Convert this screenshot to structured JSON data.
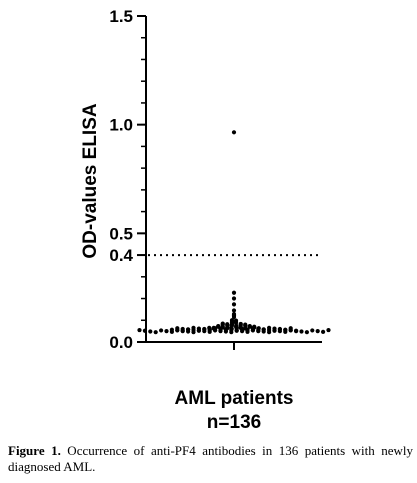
{
  "chart_data": {
    "type": "scatter",
    "ylabel": "OD-values ELISA",
    "categories": [
      "AML patients",
      "n=136"
    ],
    "ylim": [
      0,
      1.5
    ],
    "yticks": [
      0.0,
      0.4,
      0.5,
      1.0,
      1.5
    ],
    "ytick_labels": [
      "0.0",
      "0.4",
      "0.5",
      "1.0",
      "1.5"
    ],
    "reference_line": {
      "value": 0.4,
      "style": "dotted"
    },
    "outlier": 0.96,
    "n": 136,
    "values": [
      0.05,
      0.05,
      0.05,
      0.05,
      0.05,
      0.05,
      0.05,
      0.05,
      0.05,
      0.05,
      0.05,
      0.05,
      0.05,
      0.05,
      0.05,
      0.05,
      0.05,
      0.05,
      0.05,
      0.05,
      0.05,
      0.05,
      0.05,
      0.05,
      0.05,
      0.05,
      0.05,
      0.05,
      0.05,
      0.05,
      0.05,
      0.05,
      0.05,
      0.05,
      0.05,
      0.05,
      0.055,
      0.055,
      0.055,
      0.055,
      0.055,
      0.055,
      0.055,
      0.055,
      0.055,
      0.055,
      0.055,
      0.055,
      0.055,
      0.055,
      0.055,
      0.055,
      0.055,
      0.055,
      0.055,
      0.055,
      0.055,
      0.055,
      0.055,
      0.055,
      0.06,
      0.06,
      0.06,
      0.06,
      0.06,
      0.06,
      0.06,
      0.06,
      0.06,
      0.06,
      0.06,
      0.06,
      0.06,
      0.06,
      0.06,
      0.06,
      0.06,
      0.06,
      0.06,
      0.06,
      0.06,
      0.06,
      0.065,
      0.065,
      0.065,
      0.065,
      0.065,
      0.065,
      0.065,
      0.065,
      0.065,
      0.065,
      0.065,
      0.065,
      0.07,
      0.07,
      0.07,
      0.07,
      0.07,
      0.07,
      0.07,
      0.07,
      0.07,
      0.07,
      0.075,
      0.075,
      0.075,
      0.075,
      0.075,
      0.075,
      0.075,
      0.075,
      0.08,
      0.08,
      0.08,
      0.08,
      0.08,
      0.08,
      0.085,
      0.085,
      0.09,
      0.09,
      0.095,
      0.095,
      0.1,
      0.1,
      0.11,
      0.12,
      0.13,
      0.15,
      0.17,
      0.2,
      0.23,
      0.96
    ]
  },
  "caption": {
    "label": "Figure 1.",
    "text": " Occurrence of anti-PF4 antibodies in 136 patients with newly diagnosed AML."
  }
}
